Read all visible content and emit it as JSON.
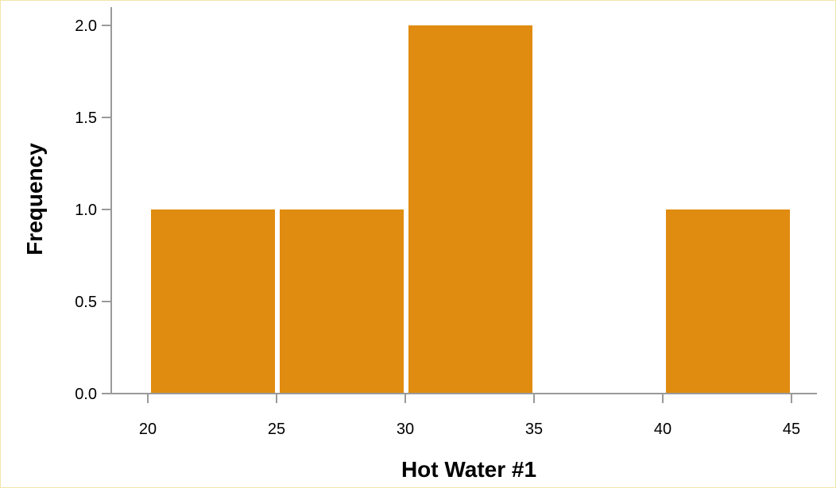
{
  "chart_data": {
    "type": "bar",
    "title": "",
    "xlabel": "Hot Water #1",
    "ylabel": "Frequency",
    "bins": [
      {
        "start": 20,
        "end": 25,
        "value": 1
      },
      {
        "start": 25,
        "end": 30,
        "value": 1
      },
      {
        "start": 30,
        "end": 35,
        "value": 2
      },
      {
        "start": 35,
        "end": 40,
        "value": 0
      },
      {
        "start": 40,
        "end": 45,
        "value": 1
      }
    ],
    "xlim": [
      18,
      46
    ],
    "ylim": [
      0,
      2.1
    ],
    "xticks": [
      "20",
      "25",
      "30",
      "35",
      "40",
      "45"
    ],
    "yticks": [
      "0.0",
      "0.5",
      "1.0",
      "1.5",
      "2.0"
    ],
    "grid": false,
    "bar_color": "#E08C10",
    "axis_color": "#9a9a9a"
  }
}
